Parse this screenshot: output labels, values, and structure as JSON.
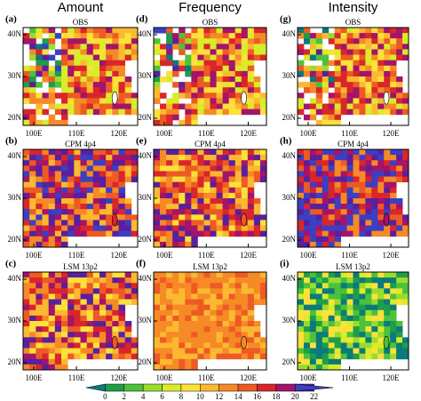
{
  "columns": [
    "Amount",
    "Frequency",
    "Intensity"
  ],
  "panels": [
    {
      "label": "(a)",
      "subtitle": "OBS"
    },
    {
      "label": "(d)",
      "subtitle": "OBS"
    },
    {
      "label": "(g)",
      "subtitle": "OBS"
    },
    {
      "label": "(b)",
      "subtitle": "CPM 4p4"
    },
    {
      "label": "(e)",
      "subtitle": "CPM 4p4"
    },
    {
      "label": "(h)",
      "subtitle": "CPM 4p4"
    },
    {
      "label": "(c)",
      "subtitle": "LSM 13p2"
    },
    {
      "label": "(f)",
      "subtitle": "LSM 13p2"
    },
    {
      "label": "(i)",
      "subtitle": "LSM 13p2"
    }
  ],
  "lat_ticks": [
    "40N",
    "30N",
    "20N"
  ],
  "lon_ticks": [
    "100E",
    "110E",
    "120E"
  ],
  "colorbar": {
    "ticks": [
      0,
      2,
      4,
      6,
      8,
      10,
      12,
      14,
      16,
      18,
      20,
      22
    ]
  }
}
